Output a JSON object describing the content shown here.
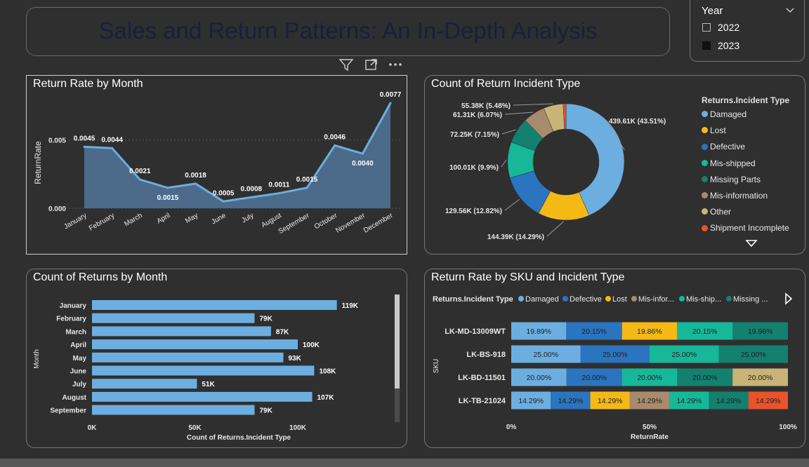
{
  "header": {
    "title": "Sales and Return Patterns: An In-Depth Analysis"
  },
  "slicer": {
    "title": "Year",
    "options": [
      {
        "label": "2022",
        "checked": false
      },
      {
        "label": "2023",
        "checked": true
      }
    ]
  },
  "visual_header": {
    "icons": [
      "filter-icon",
      "focus-mode-icon",
      "more-options-icon"
    ]
  },
  "colors": {
    "Damaged": "#6caee0",
    "Lost": "#f5b916",
    "Defective": "#2a74c0",
    "Mis-shipped": "#17b89a",
    "Missing Parts": "#138070",
    "Mis-information": "#a88a6c",
    "Other": "#c8b478",
    "Shipment Incomplete": "#e8532a",
    "area": "#4e6e8e",
    "line": "#6aaee0",
    "bar": "#6caee0"
  },
  "chart_data": [
    {
      "id": "return-rate-by-month",
      "type": "area",
      "title": "Return Rate by Month",
      "ylabel": "ReturnRate",
      "xlabel": "",
      "categories": [
        "January",
        "February",
        "March",
        "April",
        "May",
        "June",
        "July",
        "August",
        "September",
        "October",
        "November",
        "December"
      ],
      "values": [
        0.0045,
        0.0044,
        0.0021,
        0.0015,
        0.0018,
        0.0005,
        0.0008,
        0.0011,
        0.0015,
        0.0046,
        0.004,
        0.0077
      ],
      "data_labels": [
        "0.0045",
        "0.0044",
        "0.0021",
        "0.0015",
        "0.0018",
        "0.0005",
        "0.0008",
        "0.0011",
        "0.0015",
        "0.0046",
        "0.0040",
        "0.0077"
      ],
      "y_ticks": [
        "0.000",
        "0.005"
      ],
      "ylim": [
        0,
        0.0077
      ],
      "grid": true
    },
    {
      "id": "count-of-return-incident-type",
      "type": "pie",
      "title": "Count of Return Incident Type",
      "legend_title": "Returns.Incident Type",
      "legend_position": "right",
      "slices": [
        {
          "name": "Damaged",
          "value": 439.61,
          "label": "439.61K (43.51%)"
        },
        {
          "name": "Lost",
          "value": 144.39,
          "label": "144.39K (14.29%)"
        },
        {
          "name": "Defective",
          "value": 129.56,
          "label": "129.56K (12.82%)"
        },
        {
          "name": "Mis-shipped",
          "value": 100.01,
          "label": "100.01K (9.9%)"
        },
        {
          "name": "Missing Parts",
          "value": 72.25,
          "label": "72.25K (7.15%)"
        },
        {
          "name": "Mis-information",
          "value": 61.31,
          "label": "61.31K (6.07%)"
        },
        {
          "name": "Other",
          "value": 55.38,
          "label": "55.38K (5.48%)"
        },
        {
          "name": "Shipment Incomplete",
          "value": 7.8,
          "label": ""
        }
      ]
    },
    {
      "id": "count-of-returns-by-month",
      "type": "bar",
      "orientation": "horizontal",
      "title": "Count of Returns by Month",
      "ylabel": "Month",
      "xlabel": "Count of Returns.Incident Type",
      "categories": [
        "January",
        "February",
        "March",
        "April",
        "May",
        "June",
        "July",
        "August",
        "September"
      ],
      "values": [
        119,
        79,
        87,
        100,
        93,
        108,
        51,
        107,
        79
      ],
      "data_labels": [
        "119K",
        "79K",
        "87K",
        "100K",
        "93K",
        "108K",
        "51K",
        "107K",
        "79K"
      ],
      "x_ticks": [
        "0K",
        "50K",
        "100K"
      ],
      "xlim": [
        0,
        143
      ]
    },
    {
      "id": "return-rate-by-sku",
      "type": "bar",
      "orientation": "horizontal",
      "stacked": "100%",
      "title": "Return Rate by SKU and Incident Type",
      "ylabel": "SKU",
      "xlabel": "ReturnRate",
      "legend_title": "Returns.Incident Type",
      "legend_items": [
        "Damaged",
        "Defective",
        "Lost",
        "Mis-infor...",
        "Mis-ship...",
        "Missing ..."
      ],
      "x_ticks": [
        "0%",
        "50%",
        "100%"
      ],
      "categories": [
        "LK-MD-13009WT",
        "LK-BS-918",
        "LK-BD-11501",
        "LK-TB-21024"
      ],
      "rows": [
        {
          "sku": "LK-MD-13009WT",
          "segments": [
            {
              "type": "Damaged",
              "value": 19.89,
              "label": "19.89%"
            },
            {
              "type": "Defective",
              "value": 20.15,
              "label": "20.15%"
            },
            {
              "type": "Lost",
              "value": 19.86,
              "label": "19.86%"
            },
            {
              "type": "Mis-shipped",
              "value": 20.15,
              "label": "20.15%"
            },
            {
              "type": "Missing Parts",
              "value": 19.96,
              "label": "19.96%"
            }
          ]
        },
        {
          "sku": "LK-BS-918",
          "segments": [
            {
              "type": "Damaged",
              "value": 25.0,
              "label": "25.00%"
            },
            {
              "type": "Defective",
              "value": 25.0,
              "label": "25.00%"
            },
            {
              "type": "Mis-shipped",
              "value": 25.0,
              "label": "25.00%"
            },
            {
              "type": "Missing Parts",
              "value": 25.0,
              "label": "25.00%"
            }
          ]
        },
        {
          "sku": "LK-BD-11501",
          "segments": [
            {
              "type": "Damaged",
              "value": 20.0,
              "label": "20.00%"
            },
            {
              "type": "Defective",
              "value": 20.0,
              "label": "20.00%"
            },
            {
              "type": "Mis-shipped",
              "value": 20.0,
              "label": "20.00%"
            },
            {
              "type": "Missing Parts",
              "value": 20.0,
              "label": "20.00%"
            },
            {
              "type": "Other",
              "value": 20.0,
              "label": "20.00%"
            }
          ]
        },
        {
          "sku": "LK-TB-21024",
          "segments": [
            {
              "type": "Damaged",
              "value": 14.29,
              "label": "14.29%"
            },
            {
              "type": "Defective",
              "value": 14.29,
              "label": "14.29%"
            },
            {
              "type": "Lost",
              "value": 14.29,
              "label": "14.29%"
            },
            {
              "type": "Mis-information",
              "value": 14.29,
              "label": "14.29%"
            },
            {
              "type": "Mis-shipped",
              "value": 14.29,
              "label": "14.29%"
            },
            {
              "type": "Missing Parts",
              "value": 14.29,
              "label": "14.29%"
            },
            {
              "type": "Shipment Incomplete",
              "value": 14.29,
              "label": "14.29%"
            }
          ]
        }
      ]
    }
  ]
}
